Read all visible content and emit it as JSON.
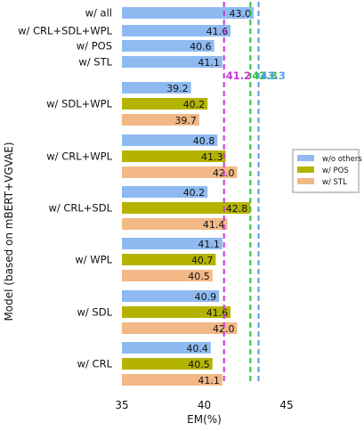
{
  "chart_data": {
    "type": "bar",
    "orientation": "horizontal",
    "xlabel": "EM(%)",
    "ylabel": "Model (based on mBERT+VGVAE)",
    "xlim": [
      35,
      45
    ],
    "xticks": [
      35,
      40,
      45
    ],
    "grid": false,
    "legend_position": "right",
    "colors": {
      "w/o others": "#8fbaf1",
      "w/ POS": "#b4b400",
      "w/ STL": "#f2b886",
      "line_pos": "#c63bd8",
      "line_stl": "#2fbf3a",
      "line_all": "#52a0e6"
    },
    "series": [
      {
        "name": "w/o others",
        "color": "#8fbaf1"
      },
      {
        "name": "w/ POS",
        "color": "#b4b400"
      },
      {
        "name": "w/ STL",
        "color": "#f2b886"
      }
    ],
    "top_bars": [
      {
        "label": "w/ all",
        "value": 43.0,
        "value_text": "43.0"
      },
      {
        "label": "w/ CRL+SDL+WPL",
        "value": 41.6,
        "value_text": "41.6"
      },
      {
        "label": "w/ POS",
        "value": 40.6,
        "value_text": "40.6"
      },
      {
        "label": "w/ STL",
        "value": 41.1,
        "value_text": "41.1"
      }
    ],
    "groups": [
      {
        "label": "w/ SDL+WPL",
        "values": [
          39.2,
          40.2,
          39.7
        ],
        "value_texts": [
          "39.2",
          "40.2",
          "39.7"
        ]
      },
      {
        "label": "w/ CRL+WPL",
        "values": [
          40.8,
          41.3,
          42.0
        ],
        "value_texts": [
          "40.8",
          "41.3",
          "42.0"
        ]
      },
      {
        "label": "w/ CRL+SDL",
        "values": [
          40.2,
          42.8,
          41.4
        ],
        "value_texts": [
          "40.2",
          "42.8",
          "41.4"
        ]
      },
      {
        "label": "w/ WPL",
        "values": [
          41.1,
          40.7,
          40.5
        ],
        "value_texts": [
          "41.1",
          "40.7",
          "40.5"
        ]
      },
      {
        "label": "w/ SDL",
        "values": [
          40.9,
          41.6,
          42.0
        ],
        "value_texts": [
          "40.9",
          "41.6",
          "42.0"
        ]
      },
      {
        "label": "w/ CRL",
        "values": [
          40.4,
          40.5,
          41.1
        ],
        "value_texts": [
          "40.4",
          "40.5",
          "41.1"
        ]
      }
    ],
    "reference_lines": [
      {
        "value": 41.2,
        "label": "41.2",
        "color": "#c63bd8"
      },
      {
        "value": 42.8,
        "label": "42.8",
        "color": "#2fbf3a"
      },
      {
        "value": 43.3,
        "label": "43.3",
        "color": "#52a0e6"
      }
    ]
  }
}
